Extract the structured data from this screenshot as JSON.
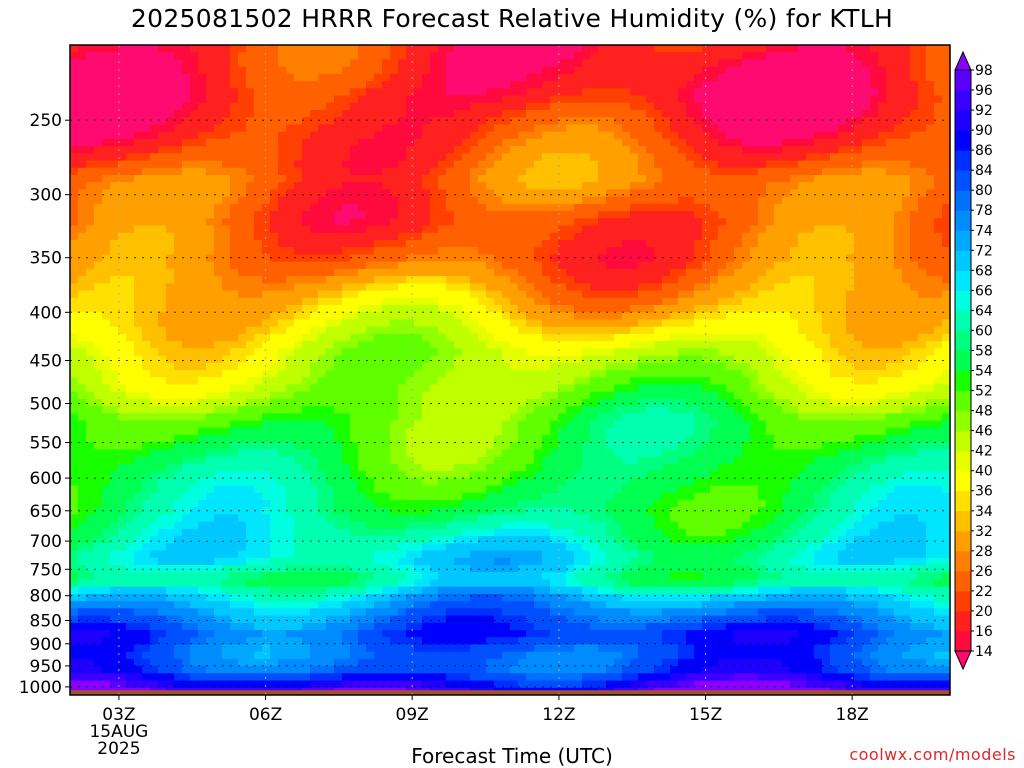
{
  "title": "2025081502 HRRR Forecast Relative Humidity (%) for KTLH",
  "credit": "coolwx.com/models",
  "chart_data": {
    "type": "heatmap",
    "title": "2025081502 HRRR Forecast Relative Humidity (%) for KTLH",
    "xlabel": "Forecast Time (UTC)",
    "ylabel": "",
    "x_ticks": [
      {
        "hour": 3,
        "label": "03Z",
        "sub": [
          "15AUG",
          "2025"
        ]
      },
      {
        "hour": 6,
        "label": "06Z",
        "sub": []
      },
      {
        "hour": 9,
        "label": "09Z",
        "sub": []
      },
      {
        "hour": 12,
        "label": "12Z",
        "sub": []
      },
      {
        "hour": 15,
        "label": "15Z",
        "sub": []
      },
      {
        "hour": 18,
        "label": "18Z",
        "sub": []
      }
    ],
    "x_range_hours": [
      2,
      20
    ],
    "y_scale": "log",
    "y_range_hPa": [
      1020,
      208
    ],
    "y_ticks": [
      250,
      300,
      350,
      400,
      450,
      500,
      550,
      600,
      650,
      700,
      750,
      800,
      850,
      900,
      950,
      1000
    ],
    "grid": "dotted",
    "colorbar": {
      "labels": [
        98,
        96,
        92,
        90,
        86,
        84,
        80,
        78,
        74,
        72,
        68,
        66,
        64,
        60,
        58,
        54,
        52,
        48,
        46,
        42,
        40,
        36,
        34,
        32,
        28,
        26,
        22,
        20,
        16,
        14
      ],
      "colors": [
        "#8a00ff",
        "#5a00ff",
        "#3a00ff",
        "#1e00ff",
        "#0000ff",
        "#0030ff",
        "#0050ff",
        "#0070ff",
        "#008cff",
        "#00a8ff",
        "#00c8ff",
        "#00e6ff",
        "#00ffe0",
        "#00ffb0",
        "#00ff80",
        "#00ff50",
        "#18ff00",
        "#60ff00",
        "#90ff00",
        "#c0ff00",
        "#e6ff00",
        "#ffff00",
        "#ffe000",
        "#ffc000",
        "#ffa000",
        "#ff8000",
        "#ff6000",
        "#ff4000",
        "#ff2020",
        "#ff0a3c",
        "#ff0a70"
      ],
      "extend": "both",
      "position": "right"
    },
    "rh_profile": [
      {
        "p": 210,
        "rh": 18
      },
      {
        "p": 235,
        "rh": 16
      },
      {
        "p": 260,
        "rh": 20
      },
      {
        "p": 290,
        "rh": 26
      },
      {
        "p": 320,
        "rh": 22
      },
      {
        "p": 350,
        "rh": 24
      },
      {
        "p": 380,
        "rh": 30
      },
      {
        "p": 410,
        "rh": 36
      },
      {
        "p": 440,
        "rh": 42
      },
      {
        "p": 480,
        "rh": 46
      },
      {
        "p": 520,
        "rh": 52
      },
      {
        "p": 560,
        "rh": 54
      },
      {
        "p": 600,
        "rh": 56
      },
      {
        "p": 650,
        "rh": 58
      },
      {
        "p": 690,
        "rh": 62
      },
      {
        "p": 730,
        "rh": 66
      },
      {
        "p": 770,
        "rh": 60
      },
      {
        "p": 800,
        "rh": 70
      },
      {
        "p": 840,
        "rh": 78
      },
      {
        "p": 880,
        "rh": 84
      },
      {
        "p": 920,
        "rh": 80
      },
      {
        "p": 960,
        "rh": 82
      },
      {
        "p": 990,
        "rh": 90
      },
      {
        "p": 1010,
        "rh": 96
      }
    ],
    "ground_color": "#a0522d"
  }
}
